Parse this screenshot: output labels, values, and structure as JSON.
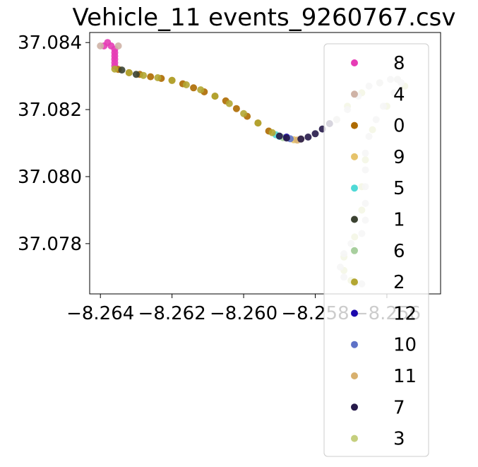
{
  "chart_data": {
    "type": "scatter",
    "title": "Vehicle_11 events_9260767.csv",
    "xlabel": "",
    "ylabel": "",
    "xlim": [
      -8.2643,
      -8.2545
    ],
    "ylim": [
      37.0765,
      37.0843
    ],
    "x_ticks": [
      -8.264,
      -8.262,
      -8.26,
      -8.258,
      -8.256
    ],
    "x_tick_labels": [
      "−8.264",
      "−8.262",
      "−8.260",
      "−8.258",
      "−8.256"
    ],
    "y_ticks": [
      37.078,
      37.08,
      37.082,
      37.084
    ],
    "y_tick_labels": [
      "37.078",
      "37.080",
      "37.082",
      "37.084"
    ],
    "grid": false,
    "legend_position": "right",
    "series": [
      {
        "name": "8",
        "color": "#e63cb5",
        "points": [
          [
            -8.2639,
            37.0839
          ],
          [
            -8.2638,
            37.084
          ],
          [
            -8.2637,
            37.0839
          ],
          [
            -8.2636,
            37.0838
          ],
          [
            -8.2636,
            37.0837
          ],
          [
            -8.2636,
            37.0836
          ],
          [
            -8.2636,
            37.0835
          ],
          [
            -8.2636,
            37.0834
          ],
          [
            -8.2636,
            37.0833
          ]
        ]
      },
      {
        "name": "4",
        "color": "#cfb3a6",
        "points": [
          [
            -8.264,
            37.0839
          ],
          [
            -8.2635,
            37.0839
          ]
        ]
      },
      {
        "name": "0",
        "color": "#ad6a00",
        "points": [
          [
            -8.2635,
            37.0832
          ],
          [
            -8.2632,
            37.0831
          ],
          [
            -8.2629,
            37.08305
          ],
          [
            -8.2626,
            37.08298
          ],
          [
            -8.2623,
            37.08293
          ],
          [
            -8.262,
            37.08287
          ],
          [
            -8.2617,
            37.08277
          ],
          [
            -8.2614,
            37.08265
          ],
          [
            -8.2611,
            37.08253
          ],
          [
            -8.2608,
            37.0824
          ],
          [
            -8.2605,
            37.08226
          ],
          [
            -8.2602,
            37.08203
          ],
          [
            -8.2599,
            37.0818
          ],
          [
            -8.2596,
            37.0816
          ],
          [
            -8.2593,
            37.08136
          ]
        ]
      },
      {
        "name": "9",
        "color": "#e6c36b",
        "points": [
          [
            -8.2586,
            37.0811
          ],
          [
            -8.2584,
            37.08112
          ]
        ]
      },
      {
        "name": "5",
        "color": "#4fd9d6",
        "points": [
          [
            -8.2591,
            37.08125
          ],
          [
            -8.259,
            37.0812
          ]
        ]
      },
      {
        "name": "1",
        "color": "#3b4231",
        "points": [
          [
            -8.2634,
            37.08318
          ],
          [
            -8.263,
            37.08305
          ]
        ]
      },
      {
        "name": "6",
        "color": "#a8cf9e",
        "points": [
          [
            -8.2589,
            37.08116
          ]
        ]
      },
      {
        "name": "2",
        "color": "#b3a632",
        "points": [
          [
            -8.2636,
            37.08321
          ],
          [
            -8.2632,
            37.0831
          ],
          [
            -8.2628,
            37.08302
          ],
          [
            -8.2624,
            37.08295
          ],
          [
            -8.262,
            37.08287
          ],
          [
            -8.2616,
            37.08274
          ],
          [
            -8.2612,
            37.08259
          ],
          [
            -8.2608,
            37.0824
          ],
          [
            -8.2604,
            37.08218
          ],
          [
            -8.26,
            37.08188
          ],
          [
            -8.2596,
            37.0816
          ],
          [
            -8.2592,
            37.08131
          ]
        ]
      },
      {
        "name": "12",
        "color": "#1c08ad",
        "points": [
          [
            -8.2588,
            37.08118
          ]
        ]
      },
      {
        "name": "10",
        "color": "#5e72c7",
        "points": [
          [
            -8.2587,
            37.08113
          ]
        ]
      },
      {
        "name": "11",
        "color": "#d8b06e",
        "points": [
          [
            -8.2585,
            37.08109
          ]
        ]
      },
      {
        "name": "7",
        "color": "#261a4a",
        "points": [
          [
            -8.259,
            37.08121
          ],
          [
            -8.2588,
            37.08115
          ],
          [
            -8.2584,
            37.08112
          ],
          [
            -8.2582,
            37.08118
          ],
          [
            -8.258,
            37.08128
          ],
          [
            -8.2578,
            37.08142
          ],
          [
            -8.2576,
            37.08158
          ]
        ]
      },
      {
        "name": "3",
        "color": "#c5cf7e",
        "points": [
          [
            -8.2574,
            37.0817
          ],
          [
            -8.2571,
            37.0821
          ],
          [
            -8.2567,
            37.0825
          ],
          [
            -8.2562,
            37.0828
          ],
          [
            -8.2557,
            37.0829
          ],
          [
            -8.2555,
            37.0827
          ],
          [
            -8.256,
            37.0821
          ],
          [
            -8.2564,
            37.0814
          ],
          [
            -8.2566,
            37.0805
          ],
          [
            -8.2567,
            37.0797
          ],
          [
            -8.2567,
            37.079
          ],
          [
            -8.2569,
            37.0782
          ],
          [
            -8.2572,
            37.0776
          ],
          [
            -8.2572,
            37.0772
          ],
          [
            -8.257,
            37.0769
          ]
        ]
      },
      {
        "name": "",
        "color": "#d3d3d3",
        "points": [
          [
            -8.2574,
            37.0817
          ],
          [
            -8.2571,
            37.082
          ],
          [
            -8.2568,
            37.0824
          ],
          [
            -8.2565,
            37.0827
          ],
          [
            -8.2562,
            37.0828
          ],
          [
            -8.2559,
            37.0829
          ],
          [
            -8.2557,
            37.0829
          ],
          [
            -8.2556,
            37.0828
          ],
          [
            -8.2558,
            37.0825
          ],
          [
            -8.2561,
            37.0821
          ],
          [
            -8.2563,
            37.0817
          ],
          [
            -8.2565,
            37.0812
          ],
          [
            -8.2566,
            37.0807
          ],
          [
            -8.2566,
            37.0802
          ],
          [
            -8.2566,
            37.0797
          ],
          [
            -8.2566,
            37.0792
          ],
          [
            -8.2566,
            37.0787
          ],
          [
            -8.2567,
            37.0783
          ],
          [
            -8.257,
            37.078
          ],
          [
            -8.2572,
            37.0777
          ],
          [
            -8.2573,
            37.0773
          ],
          [
            -8.2572,
            37.077
          ],
          [
            -8.2569,
            37.0768
          ],
          [
            -8.2567,
            37.0768
          ]
        ]
      }
    ]
  }
}
